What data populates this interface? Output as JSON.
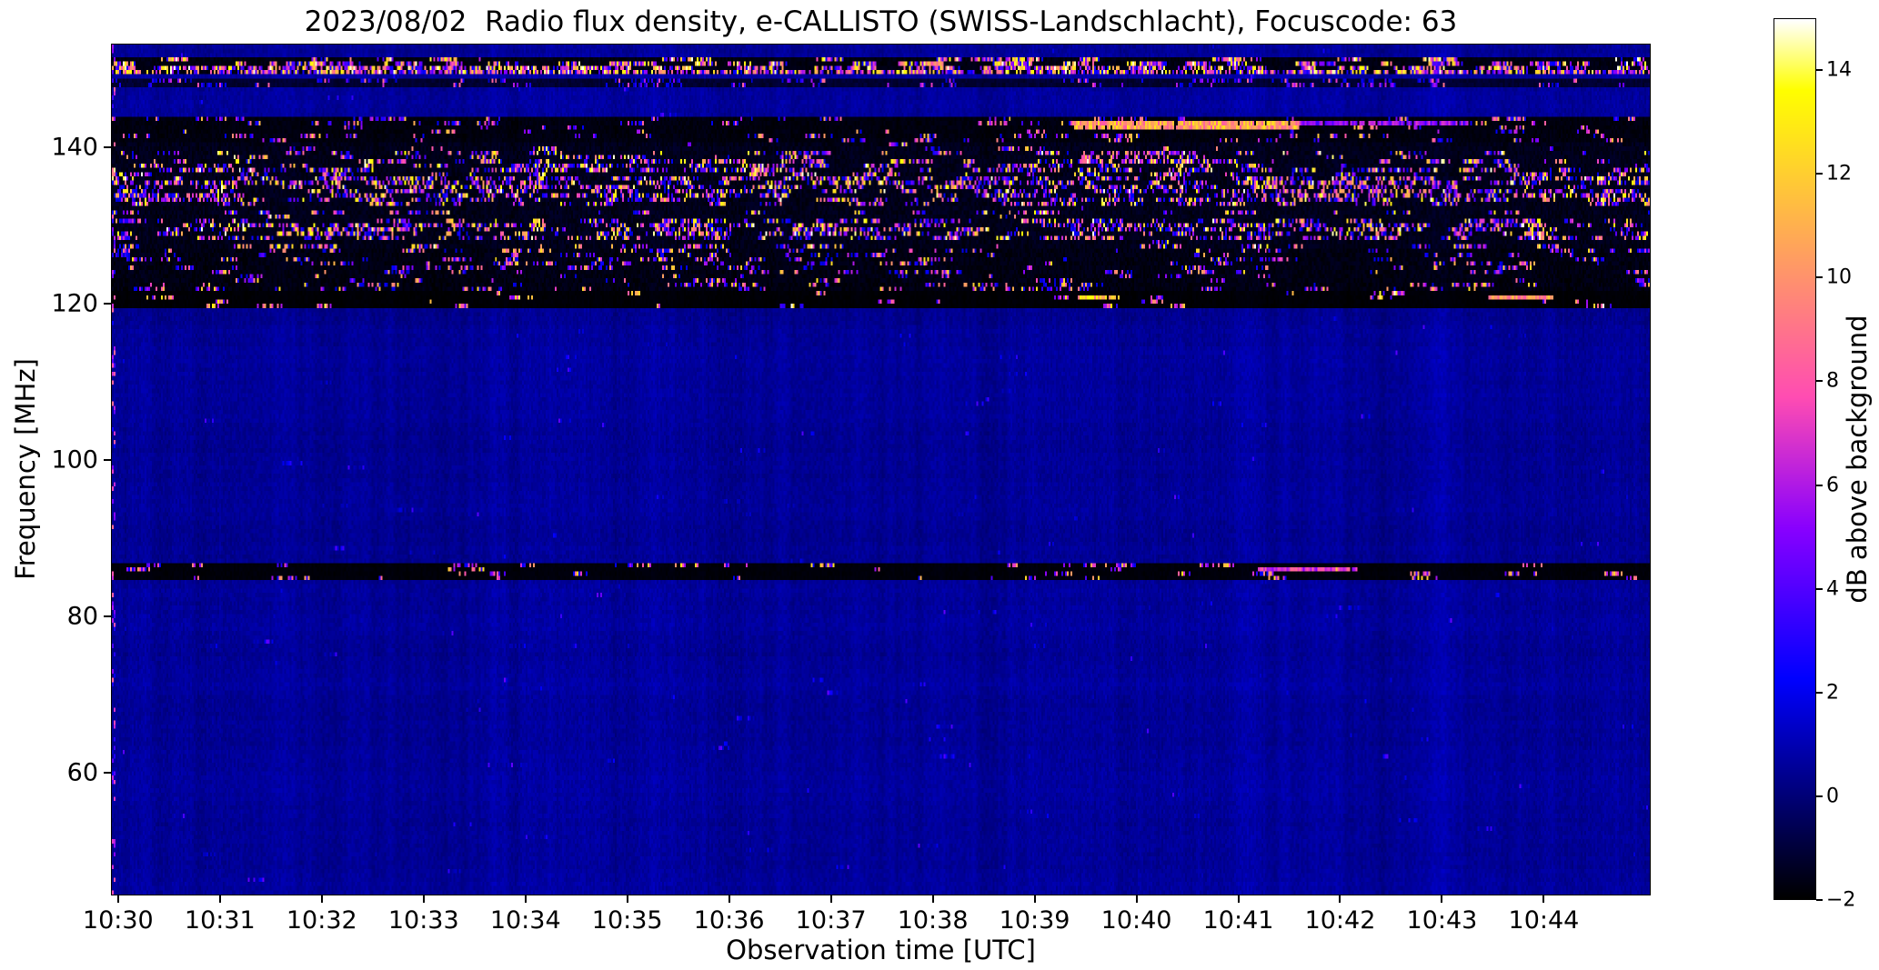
{
  "chart_data": {
    "type": "heatmap",
    "title": "2023/08/02  Radio flux density, e-CALLISTO (SWISS-Landschlacht), Focuscode: 63",
    "xlabel": "Observation time [UTC]",
    "ylabel": "Frequency [MHz]",
    "colorbar_label": "dB above background",
    "colormap": "gnuplot2",
    "meta": {
      "date": "2023/08/02",
      "instrument": "e-CALLISTO",
      "station": "SWISS-Landschlacht",
      "focuscode": "63"
    },
    "x_ticks": [
      "10:30",
      "10:31",
      "10:32",
      "10:33",
      "10:34",
      "10:35",
      "10:36",
      "10:37",
      "10:38",
      "10:39",
      "10:40",
      "10:41",
      "10:42",
      "10:43",
      "10:44"
    ],
    "x_range_minutes": [
      -0.07,
      15.05
    ],
    "y_ticks": [
      {
        "value": 140,
        "label": "140"
      },
      {
        "value": 120,
        "label": "120"
      },
      {
        "value": 100,
        "label": "100"
      },
      {
        "value": 80,
        "label": "80"
      },
      {
        "value": 60,
        "label": "60"
      }
    ],
    "y_range_mhz": [
      44.3,
      153.2
    ],
    "color_scale": {
      "vmin": -2,
      "vmax": 15,
      "unit": "dB",
      "ticks": [
        {
          "value": 14,
          "label": "14"
        },
        {
          "value": 12,
          "label": "12"
        },
        {
          "value": 10,
          "label": "10"
        },
        {
          "value": 8,
          "label": "8"
        },
        {
          "value": 6,
          "label": "6"
        },
        {
          "value": 4,
          "label": "4"
        },
        {
          "value": 2,
          "label": "2"
        },
        {
          "value": 0,
          "label": "0"
        },
        {
          "value": -2,
          "label": "−2"
        }
      ]
    },
    "background": {
      "name": "quiet-sky",
      "base": 0.55,
      "noise": 0.55,
      "cluster": 0.012,
      "speckle": 0.2,
      "smin": 1,
      "smax": 4.5,
      "pow": 2.5,
      "blackrow": 0
    },
    "bands": [
      {
        "name": "rfi-151",
        "f": [
          149.3,
          151.5
        ],
        "base": -1.7,
        "noise": 0.4,
        "cluster": 0.6,
        "speckle": 0.7,
        "smin": 2,
        "smax": 15,
        "pow": 1.15,
        "blackrow": 0
      },
      {
        "name": "rfi-148",
        "f": [
          147.7,
          148.7
        ],
        "base": -1.2,
        "noise": 0.5,
        "cluster": 0.3,
        "speckle": 0.4,
        "smin": 1,
        "smax": 9,
        "pow": 1.8,
        "blackrow": 0
      },
      {
        "name": "rfi-aero-upper",
        "f": [
          140.6,
          143.8
        ],
        "base": -1.75,
        "noise": 0.35,
        "cluster": 0.15,
        "speckle": 0.4,
        "smin": 2,
        "smax": 12,
        "pow": 1.6,
        "blackrow": 0.1
      },
      {
        "name": "rfi-aero-core",
        "f": [
          127.0,
          140.6
        ],
        "base": -1.6,
        "noise": 0.55,
        "cluster": 0.42,
        "speckle": 0.55,
        "smin": 1.5,
        "smax": 15,
        "pow": 1.6,
        "blackrow": 0.18
      },
      {
        "name": "rfi-aero-lower",
        "f": [
          121.6,
          127.0
        ],
        "base": -1.7,
        "noise": 0.5,
        "cluster": 0.22,
        "speckle": 0.45,
        "smin": 1.5,
        "smax": 13,
        "pow": 1.7,
        "blackrow": 0.15
      },
      {
        "name": "rfi-120",
        "f": [
          119.4,
          121.6
        ],
        "base": -1.9,
        "noise": 0.15,
        "cluster": 0.09,
        "speckle": 0.5,
        "smin": 3,
        "smax": 15,
        "pow": 1.2,
        "blackrow": 0
      },
      {
        "name": "rfi-85",
        "f": [
          84.8,
          86.6
        ],
        "base": -1.85,
        "noise": 0.18,
        "cluster": 0.12,
        "speckle": 0.5,
        "smin": 2,
        "smax": 13,
        "pow": 1.4,
        "blackrow": 0
      }
    ],
    "streaks": [
      {
        "name": "bright-drift-main",
        "f": 143.1,
        "rows": 2,
        "t": [
          0.626,
          0.772
        ],
        "v": [
          8,
          13
        ],
        "p": 0.95
      },
      {
        "name": "bright-drift-tail",
        "f": 143.1,
        "rows": 1,
        "t": [
          0.772,
          0.884
        ],
        "v": [
          3.5,
          7
        ],
        "p": 0.9
      },
      {
        "name": "core-patch-1",
        "f": 139.0,
        "rows": 3,
        "t": [
          0.63,
          0.705
        ],
        "v": [
          4,
          12
        ],
        "p": 0.35
      },
      {
        "name": "core-patch-2",
        "f": 134.5,
        "rows": 4,
        "t": [
          0.77,
          0.86
        ],
        "v": [
          4,
          13
        ],
        "p": 0.3
      },
      {
        "name": "streak-85",
        "f": 85.7,
        "rows": 1,
        "t": [
          0.745,
          0.81
        ],
        "v": [
          5,
          9
        ],
        "p": 0.9
      },
      {
        "name": "streak-120-late",
        "f": 120.6,
        "rows": 1,
        "t": [
          0.895,
          0.937
        ],
        "v": [
          8,
          12
        ],
        "p": 0.9
      },
      {
        "name": "streak-120-mid",
        "f": 120.9,
        "rows": 1,
        "t": [
          0.628,
          0.655
        ],
        "v": [
          9,
          14
        ],
        "p": 0.9
      }
    ]
  }
}
